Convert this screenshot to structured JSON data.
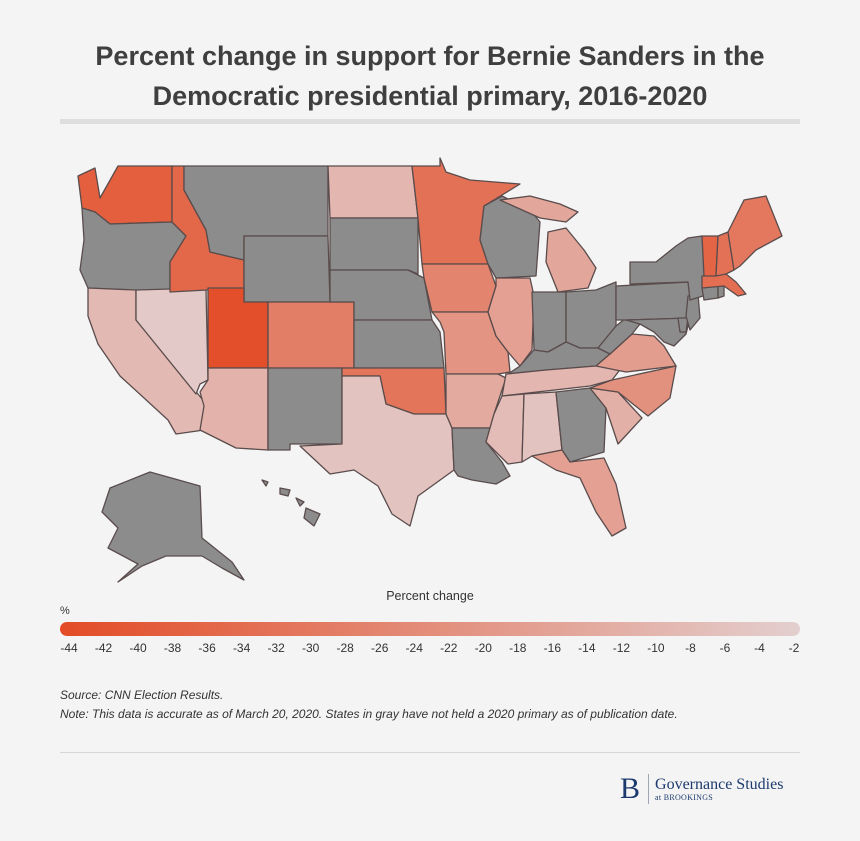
{
  "title": "Percent change in support for Bernie Sanders in the Democratic presidential primary, 2016-2020",
  "legend": {
    "title": "Percent change",
    "unit": "%",
    "ticks": [
      "-44",
      "-42",
      "-40",
      "-38",
      "-36",
      "-34",
      "-32",
      "-30",
      "-28",
      "-26",
      "-24",
      "-22",
      "-20",
      "-18",
      "-16",
      "-14",
      "-12",
      "-10",
      "-8",
      "-6",
      "-4",
      "-2"
    ],
    "min": -44,
    "max": -2,
    "color_low": "#e34c26",
    "color_high": "#e3cfcf",
    "no_data_color": "#8c8c8c"
  },
  "map": {
    "region": "United States",
    "states": {
      "WA": {
        "name": "Washington",
        "change": -38
      },
      "OR": {
        "name": "Oregon",
        "change": null
      },
      "CA": {
        "name": "California",
        "change": -9
      },
      "NV": {
        "name": "Nevada",
        "change": -4
      },
      "ID": {
        "name": "Idaho",
        "change": -35
      },
      "MT": {
        "name": "Montana",
        "change": null
      },
      "WY": {
        "name": "Wyoming",
        "change": null
      },
      "UT": {
        "name": "Utah",
        "change": -43
      },
      "AZ": {
        "name": "Arizona",
        "change": -11
      },
      "CO": {
        "name": "Colorado",
        "change": -28
      },
      "NM": {
        "name": "New Mexico",
        "change": null
      },
      "ND": {
        "name": "North Dakota",
        "change": -10
      },
      "SD": {
        "name": "South Dakota",
        "change": null
      },
      "NE": {
        "name": "Nebraska",
        "change": null
      },
      "KS": {
        "name": "Kansas",
        "change": null
      },
      "OK": {
        "name": "Oklahoma",
        "change": -31
      },
      "TX": {
        "name": "Texas",
        "change": -6
      },
      "MN": {
        "name": "Minnesota",
        "change": -32
      },
      "IA": {
        "name": "Iowa",
        "change": -26
      },
      "MO": {
        "name": "Missouri",
        "change": -21
      },
      "AR": {
        "name": "Arkansas",
        "change": -14
      },
      "LA": {
        "name": "Louisiana",
        "change": null
      },
      "WI": {
        "name": "Wisconsin",
        "change": null
      },
      "IL": {
        "name": "Illinois",
        "change": -17
      },
      "MI": {
        "name": "Michigan",
        "change": -15
      },
      "IN": {
        "name": "Indiana",
        "change": null
      },
      "OH": {
        "name": "Ohio",
        "change": null
      },
      "KY": {
        "name": "Kentucky",
        "change": null
      },
      "TN": {
        "name": "Tennessee",
        "change": -10
      },
      "MS": {
        "name": "Mississippi",
        "change": -8
      },
      "AL": {
        "name": "Alabama",
        "change": -6
      },
      "GA": {
        "name": "Georgia",
        "change": null
      },
      "FL": {
        "name": "Florida",
        "change": -17
      },
      "SC": {
        "name": "South Carolina",
        "change": -12
      },
      "NC": {
        "name": "North Carolina",
        "change": -22
      },
      "VA": {
        "name": "Virginia",
        "change": -18
      },
      "WV": {
        "name": "West Virginia",
        "change": null
      },
      "PA": {
        "name": "Pennsylvania",
        "change": null
      },
      "NY": {
        "name": "New York",
        "change": null
      },
      "VT": {
        "name": "Vermont",
        "change": -36
      },
      "NH": {
        "name": "New Hampshire",
        "change": -32
      },
      "ME": {
        "name": "Maine",
        "change": -30
      },
      "MA": {
        "name": "Massachusetts",
        "change": -33
      },
      "RI": {
        "name": "Rhode Island",
        "change": null
      },
      "CT": {
        "name": "Connecticut",
        "change": null
      },
      "NJ": {
        "name": "New Jersey",
        "change": null
      },
      "DE": {
        "name": "Delaware",
        "change": null
      },
      "MD": {
        "name": "Maryland",
        "change": null
      },
      "AK": {
        "name": "Alaska",
        "change": null
      },
      "HI": {
        "name": "Hawaii",
        "change": null
      }
    }
  },
  "source": "Source: CNN Election Results.",
  "note": "Note: This data is accurate as of March 20, 2020. States in gray have not held a 2020 primary as of publication date.",
  "logo": {
    "mark": "B",
    "name": "Governance Studies",
    "sub": "at BROOKINGS"
  }
}
